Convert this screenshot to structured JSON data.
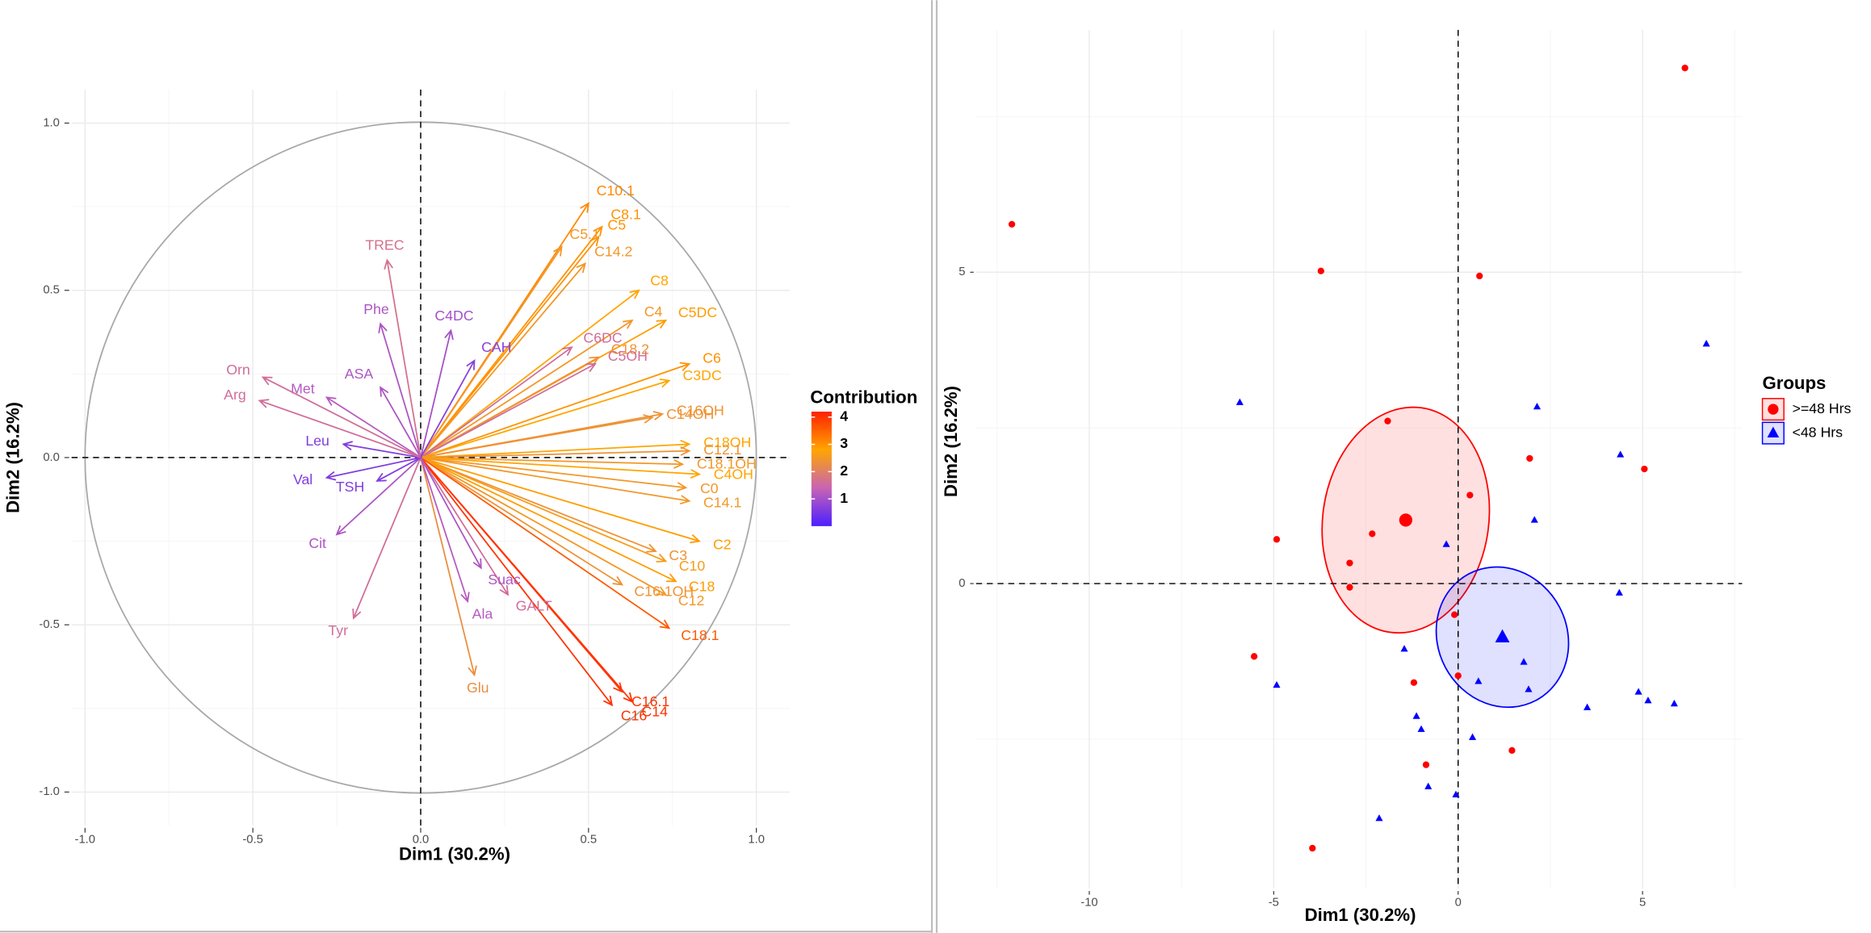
{
  "chart_data": [
    {
      "type": "arrows",
      "xlabel": "Dim1 (30.2%)",
      "ylabel": "Dim2 (16.2%)",
      "xlim": [
        -1.04,
        1.1
      ],
      "ylim": [
        -1.1,
        1.1
      ],
      "xticks": [
        {
          "value": -1,
          "label": "-1.0"
        },
        -0.5,
        {
          "value": 0,
          "label": "0.0"
        },
        0.5,
        {
          "value": 1,
          "label": "1.0"
        }
      ],
      "yticks": [
        {
          "value": -1,
          "label": "-1.0"
        },
        -0.5,
        {
          "value": 0,
          "label": "0.0"
        },
        0.5,
        {
          "value": 1,
          "label": "1.0"
        }
      ],
      "grid": true,
      "circle_radius": 1,
      "legend_title": "Contribution",
      "legend_ticks": [
        1,
        2,
        3,
        4
      ],
      "color_limits": [
        0,
        4.2
      ],
      "color_scale": [
        "#4B1FFF",
        "#C864B4",
        "#FFA500",
        "#FF2000"
      ],
      "names": [
        "C10.1",
        "C8.1",
        "C5",
        "C5.1",
        "C14.2",
        "C8",
        "C5DC",
        "C6",
        "C3DC",
        "C4",
        "C6DC",
        "C18.2",
        "C5OH",
        "C16OH",
        "C14OH",
        "C18OH",
        "C12.1",
        "C18.1OH",
        "C4OH",
        "C0",
        "C14.1",
        "C2",
        "C3",
        "C10",
        "C18",
        "C16.1OH",
        "C12",
        "C18.1",
        "C16.1",
        "C16",
        "C14",
        "Glu",
        "GALT",
        "Suac",
        "Ala",
        "Tyr",
        "Cit",
        "TSH",
        "Val",
        "Leu",
        "Met",
        "Arg",
        "Orn",
        "ASA",
        "Phe",
        "TREC",
        "C4DC",
        "CAH"
      ],
      "x": [
        0.5,
        0.54,
        0.53,
        0.42,
        0.49,
        0.65,
        0.73,
        0.8,
        0.74,
        0.63,
        0.45,
        0.53,
        0.52,
        0.72,
        0.69,
        0.8,
        0.8,
        0.78,
        0.83,
        0.79,
        0.8,
        0.83,
        0.7,
        0.73,
        0.76,
        0.6,
        0.73,
        0.74,
        0.6,
        0.57,
        0.63,
        0.16,
        0.26,
        0.18,
        0.14,
        -0.2,
        -0.25,
        -0.13,
        -0.28,
        -0.23,
        -0.28,
        -0.48,
        -0.47,
        -0.12,
        -0.12,
        -0.1,
        0.09,
        0.16
      ],
      "y": [
        0.76,
        0.69,
        0.66,
        0.63,
        0.58,
        0.5,
        0.41,
        0.28,
        0.23,
        0.41,
        0.33,
        0.3,
        0.28,
        0.13,
        0.12,
        0.04,
        0.02,
        -0.02,
        -0.05,
        -0.09,
        -0.13,
        -0.25,
        -0.28,
        -0.31,
        -0.37,
        -0.38,
        -0.41,
        -0.51,
        -0.7,
        -0.74,
        -0.73,
        -0.65,
        -0.41,
        -0.33,
        -0.43,
        -0.48,
        -0.23,
        -0.07,
        -0.06,
        0.04,
        0.18,
        0.17,
        0.24,
        0.21,
        0.4,
        0.59,
        0.38,
        0.29
      ],
      "contrib": [
        3.1,
        3.0,
        3.0,
        2.5,
        2.5,
        2.8,
        2.9,
        3.0,
        2.8,
        2.5,
        1.6,
        2.4,
        1.6,
        2.4,
        2.4,
        2.8,
        2.4,
        2.5,
        2.8,
        2.5,
        2.5,
        2.9,
        2.4,
        2.6,
        2.9,
        2.4,
        2.5,
        3.6,
        4.0,
        4.0,
        4.0,
        2.3,
        1.6,
        1.1,
        1.2,
        1.6,
        1.1,
        0.6,
        0.6,
        0.6,
        1.2,
        1.6,
        1.6,
        1.1,
        1.1,
        1.7,
        1.0,
        0.7
      ]
    },
    {
      "type": "scatter",
      "xlabel": "Dim1 (30.2%)",
      "ylabel": "Dim2 (16.2%)",
      "xlim": [
        -13.07,
        7.7
      ],
      "ylim": [
        -4.9,
        8.89
      ],
      "xticks": [
        -10,
        -5,
        0,
        5
      ],
      "yticks": [
        0,
        5
      ],
      "grid": true,
      "legend_title": "Groups",
      "series": [
        {
          "name": ">=48 Hrs",
          "color": "#FF0000",
          "marker": "circle",
          "x": [
            6.15,
            -12.1,
            -3.72,
            0.58,
            -1.91,
            1.94,
            5.05,
            0.32,
            -2.33,
            -4.92,
            -2.94,
            -2.94,
            -0.1,
            -5.53,
            0.0,
            -1.2,
            1.46,
            -0.87,
            -3.95
          ],
          "y": [
            8.28,
            5.77,
            5.02,
            4.94,
            2.61,
            2.01,
            1.84,
            1.42,
            0.8,
            0.71,
            0.33,
            -0.06,
            -0.5,
            -1.17,
            -1.48,
            -1.59,
            -2.68,
            -2.91,
            -4.25
          ],
          "centroid_x": -1.42,
          "centroid_y": 1.02,
          "ellipse": {
            "rx": 2.25,
            "ry": 1.82,
            "angle": 8
          }
        },
        {
          "name": "<48 Hrs",
          "color": "#0000FF",
          "marker": "triangle",
          "x": [
            6.73,
            -5.92,
            2.14,
            4.4,
            2.07,
            -0.32,
            4.37,
            -1.46,
            1.78,
            0.55,
            1.91,
            -4.92,
            4.89,
            5.15,
            5.86,
            3.5,
            -1.13,
            -1.0,
            0.39,
            -0.81,
            -0.06,
            -2.14
          ],
          "y": [
            3.85,
            2.91,
            2.84,
            2.07,
            1.02,
            0.63,
            -0.15,
            -1.05,
            -1.26,
            -1.57,
            -1.7,
            -1.63,
            -1.74,
            -1.88,
            -1.93,
            -1.99,
            -2.13,
            -2.34,
            -2.47,
            -3.26,
            -3.39,
            -3.77
          ],
          "centroid_x": 1.2,
          "centroid_y": -0.86,
          "ellipse": {
            "rx": 1.75,
            "ry": 1.15,
            "angle": -28
          }
        }
      ]
    }
  ]
}
